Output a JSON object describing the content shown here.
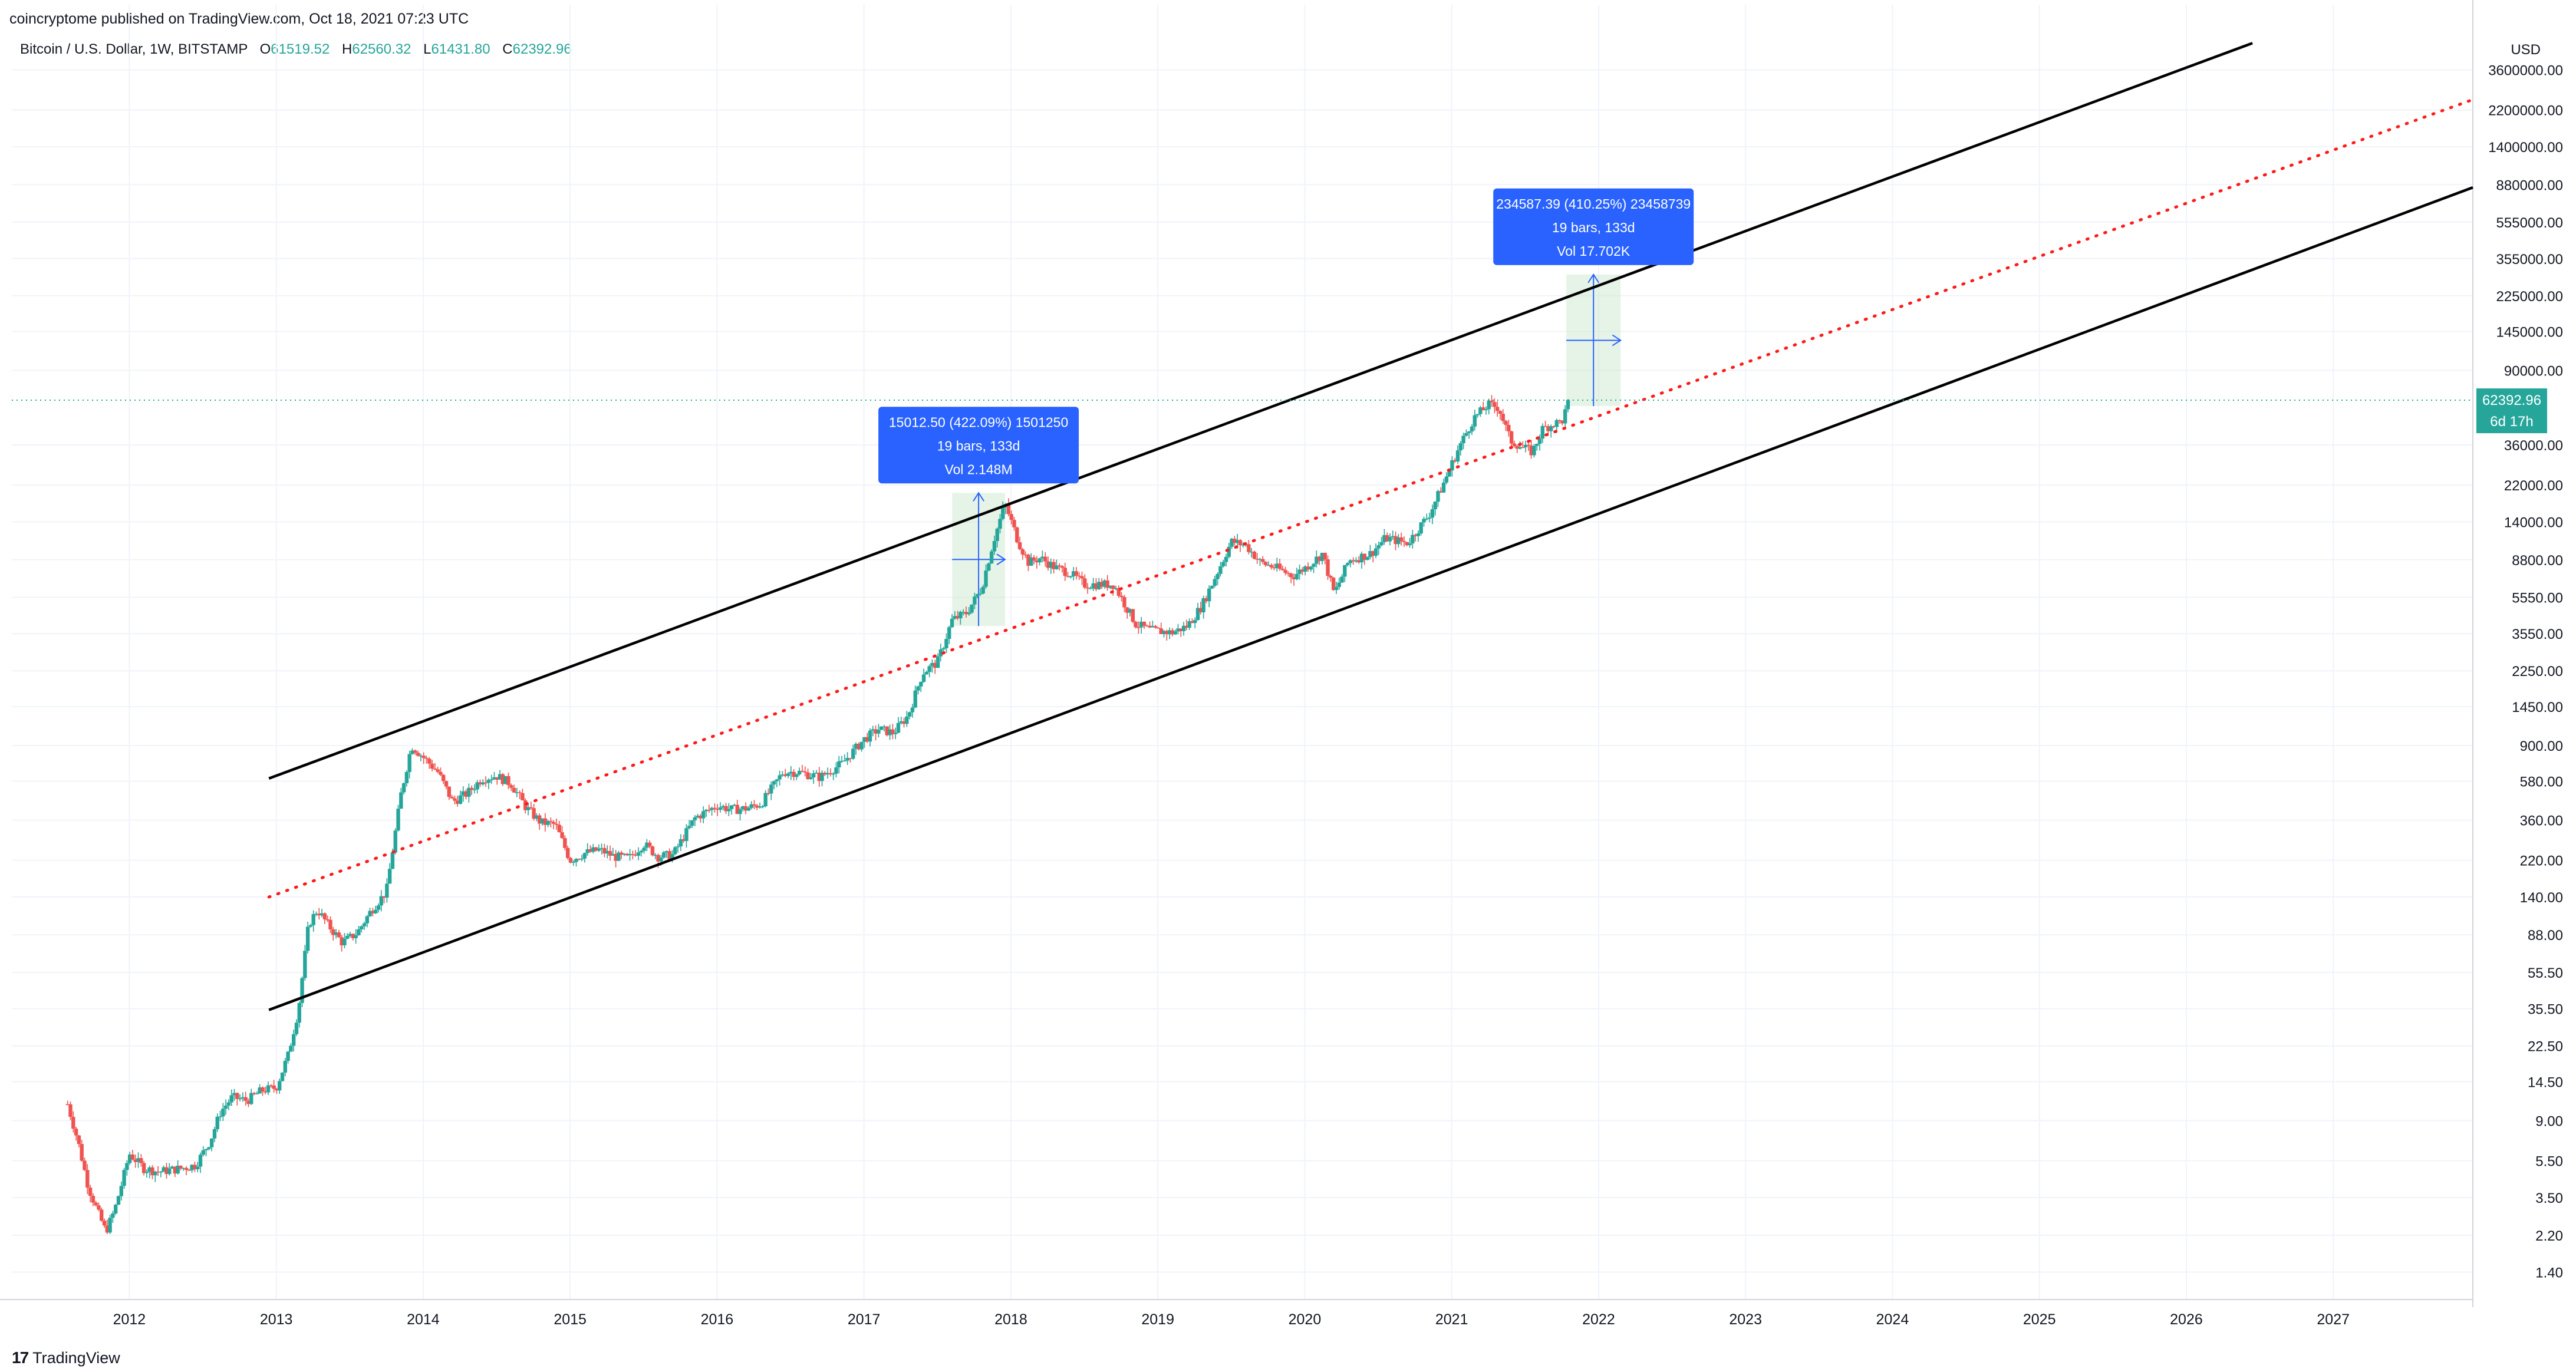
{
  "header": {
    "publisher": "coincryptome published on TradingView.com, Oct 18, 2021 07:23 UTC",
    "symbol": "Bitcoin / U.S. Dollar, 1W, BITSTAMP",
    "ohlc": [
      {
        "k": "O",
        "v": "61519.52"
      },
      {
        "k": "H",
        "v": "62560.32"
      },
      {
        "k": "L",
        "v": "61431.80"
      },
      {
        "k": "C",
        "v": "62392.96"
      }
    ]
  },
  "footer": {
    "logo": "17",
    "brand": "TradingView"
  },
  "colors": {
    "up": "#26a69a",
    "down": "#ef5350",
    "channel": "#000000",
    "midline": "#ff1a1a",
    "label": "#2962ff",
    "zone": "#c8e6c9"
  },
  "chart_data": {
    "type": "candlestick",
    "y_scale": "log",
    "y_unit": "USD",
    "ylim": [
      1.0,
      6000000
    ],
    "y_ticks": [
      "3600000.00",
      "2200000.00",
      "1400000.00",
      "880000.00",
      "555000.00",
      "355000.00",
      "225000.00",
      "145000.00",
      "90000.00",
      "36000.00",
      "22000.00",
      "14000.00",
      "8800.00",
      "5550.00",
      "3550.00",
      "2250.00",
      "1450.00",
      "900.00",
      "580.00",
      "360.00",
      "220.00",
      "140.00",
      "88.00",
      "55.50",
      "35.50",
      "22.50",
      "14.50",
      "9.00",
      "5.50",
      "3.50",
      "2.20",
      "1.40"
    ],
    "y_tick_values": [
      3600000,
      2200000,
      1400000,
      880000,
      555000,
      355000,
      225000,
      145000,
      90000,
      36000,
      22000,
      14000,
      8800,
      5550,
      3550,
      2250,
      1450,
      900,
      580,
      360,
      220,
      140,
      88,
      55.5,
      35.5,
      22.5,
      14.5,
      9,
      5.5,
      3.5,
      2.2,
      1.4
    ],
    "x_ticks": [
      "2012",
      "2013",
      "2014",
      "2015",
      "2016",
      "2017",
      "2018",
      "2019",
      "2020",
      "2021",
      "2022",
      "2023",
      "2024",
      "2025",
      "2026",
      "2027"
    ],
    "x_tick_values": [
      2012,
      2013,
      2014,
      2015,
      2016,
      2017,
      2018,
      2019,
      2020,
      2021,
      2022,
      2023,
      2024,
      2025,
      2026,
      2027
    ],
    "xlim": [
      2011.2,
      2027.95
    ],
    "last_price": {
      "value": 62392.96,
      "label": "62392.96",
      "countdown": "6d 17h"
    },
    "price_path": [
      [
        2011.58,
        11
      ],
      [
        2011.65,
        7
      ],
      [
        2011.72,
        4
      ],
      [
        2011.78,
        3
      ],
      [
        2011.84,
        2.3
      ],
      [
        2011.9,
        3
      ],
      [
        2011.96,
        4.5
      ],
      [
        2012.0,
        6
      ],
      [
        2012.1,
        5
      ],
      [
        2012.2,
        4.8
      ],
      [
        2012.35,
        5
      ],
      [
        2012.45,
        5.2
      ],
      [
        2012.55,
        7
      ],
      [
        2012.62,
        10
      ],
      [
        2012.7,
        12
      ],
      [
        2012.8,
        11.5
      ],
      [
        2012.9,
        13
      ],
      [
        2013.0,
        13.5
      ],
      [
        2013.08,
        20
      ],
      [
        2013.15,
        35
      ],
      [
        2013.22,
        100
      ],
      [
        2013.28,
        120
      ],
      [
        2013.35,
        100
      ],
      [
        2013.45,
        80
      ],
      [
        2013.55,
        90
      ],
      [
        2013.65,
        120
      ],
      [
        2013.75,
        150
      ],
      [
        2013.85,
        500
      ],
      [
        2013.92,
        900
      ],
      [
        2014.0,
        780
      ],
      [
        2014.1,
        650
      ],
      [
        2014.2,
        450
      ],
      [
        2014.3,
        500
      ],
      [
        2014.4,
        600
      ],
      [
        2014.5,
        620
      ],
      [
        2014.6,
        560
      ],
      [
        2014.7,
        420
      ],
      [
        2014.8,
        350
      ],
      [
        2014.9,
        340
      ],
      [
        2015.0,
        220
      ],
      [
        2015.1,
        240
      ],
      [
        2015.2,
        250
      ],
      [
        2015.3,
        230
      ],
      [
        2015.4,
        225
      ],
      [
        2015.5,
        270
      ],
      [
        2015.6,
        230
      ],
      [
        2015.7,
        235
      ],
      [
        2015.85,
        370
      ],
      [
        2016.0,
        430
      ],
      [
        2016.1,
        410
      ],
      [
        2016.2,
        415
      ],
      [
        2016.3,
        440
      ],
      [
        2016.45,
        650
      ],
      [
        2016.55,
        650
      ],
      [
        2016.7,
        610
      ],
      [
        2016.85,
        720
      ],
      [
        2017.0,
        970
      ],
      [
        2017.1,
        1100
      ],
      [
        2017.2,
        1050
      ],
      [
        2017.3,
        1300
      ],
      [
        2017.4,
        2200
      ],
      [
        2017.5,
        2500
      ],
      [
        2017.6,
        4200
      ],
      [
        2017.7,
        4600
      ],
      [
        2017.8,
        6200
      ],
      [
        2017.88,
        11000
      ],
      [
        2017.96,
        17500
      ],
      [
        2018.05,
        11000
      ],
      [
        2018.12,
        8500
      ],
      [
        2018.2,
        9000
      ],
      [
        2018.3,
        8000
      ],
      [
        2018.4,
        7500
      ],
      [
        2018.5,
        6500
      ],
      [
        2018.6,
        6500
      ],
      [
        2018.7,
        6500
      ],
      [
        2018.85,
        4000
      ],
      [
        2018.95,
        3700
      ],
      [
        2019.1,
        3600
      ],
      [
        2019.2,
        3900
      ],
      [
        2019.3,
        5000
      ],
      [
        2019.42,
        8000
      ],
      [
        2019.5,
        11000
      ],
      [
        2019.6,
        10500
      ],
      [
        2019.7,
        8500
      ],
      [
        2019.8,
        8000
      ],
      [
        2019.92,
        7200
      ],
      [
        2020.05,
        8500
      ],
      [
        2020.12,
        9500
      ],
      [
        2020.2,
        5800
      ],
      [
        2020.3,
        8700
      ],
      [
        2020.45,
        9500
      ],
      [
        2020.55,
        11500
      ],
      [
        2020.7,
        10800
      ],
      [
        2020.85,
        15500
      ],
      [
        2020.95,
        23000
      ],
      [
        2021.05,
        35000
      ],
      [
        2021.15,
        50000
      ],
      [
        2021.25,
        59000
      ],
      [
        2021.32,
        57000
      ],
      [
        2021.4,
        38000
      ],
      [
        2021.48,
        35000
      ],
      [
        2021.55,
        33000
      ],
      [
        2021.62,
        44000
      ],
      [
        2021.7,
        47000
      ],
      [
        2021.75,
        48000
      ],
      [
        2021.8,
        62392.96
      ]
    ],
    "channel_upper": [
      [
        2012.95,
        600
      ],
      [
        2026.45,
        5000000
      ]
    ],
    "channel_lower": [
      [
        2012.95,
        35
      ],
      [
        2027.95,
        850000
      ]
    ],
    "midline": [
      [
        2012.95,
        140
      ],
      [
        2027.95,
        2500000
      ]
    ],
    "projections": [
      {
        "label_lines": [
          "15012.50 (422.09%) 1501250",
          "19 bars, 133d",
          "Vol 2.148M"
        ],
        "x0": 2017.6,
        "x1": 2017.96,
        "y0": 3900,
        "y1": 20000
      },
      {
        "label_lines": [
          "234587.39 (410.25%) 23458739",
          "19 bars, 133d",
          "Vol 17.702K"
        ],
        "x0": 2021.78,
        "x1": 2022.15,
        "y0": 58000,
        "y1": 292000
      }
    ]
  }
}
